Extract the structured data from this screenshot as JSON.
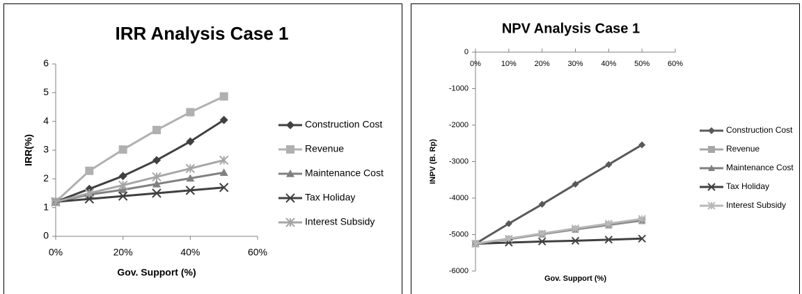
{
  "chart_data": [
    {
      "type": "line",
      "title": "IRR Analysis Case 1",
      "x_label": "Gov. Support (%)",
      "y_label": "IRR(%)",
      "x": [
        0,
        10,
        20,
        30,
        40,
        50
      ],
      "xlim": [
        0,
        60
      ],
      "xticks": [
        {
          "value": 0,
          "label": "0%"
        },
        {
          "value": 20,
          "label": "20%"
        },
        {
          "value": 40,
          "label": "40%"
        },
        {
          "value": 60,
          "label": "60%"
        }
      ],
      "ylim": [
        0,
        6
      ],
      "yticks": [
        0,
        1,
        2,
        3,
        4,
        5,
        6
      ],
      "grid": false,
      "legend": "right",
      "series": [
        {
          "name": "Construction Cost",
          "color": "#404040",
          "marker": "diamond",
          "values": [
            1.2,
            1.65,
            2.1,
            2.65,
            3.3,
            4.05
          ]
        },
        {
          "name": "Revenue",
          "color": "#b0b0b0",
          "marker": "square",
          "values": [
            1.2,
            2.28,
            3.02,
            3.7,
            4.32,
            4.87
          ]
        },
        {
          "name": "Maintenance Cost",
          "color": "#808080",
          "marker": "triangle",
          "values": [
            1.2,
            1.45,
            1.62,
            1.82,
            2.02,
            2.22
          ]
        },
        {
          "name": "Tax Holiday",
          "color": "#404040",
          "marker": "x",
          "values": [
            1.2,
            1.3,
            1.4,
            1.5,
            1.6,
            1.7
          ]
        },
        {
          "name": "Interest Subsidy",
          "color": "#a6a6a6",
          "marker": "star",
          "values": [
            1.2,
            1.5,
            1.78,
            2.07,
            2.36,
            2.65
          ]
        }
      ]
    },
    {
      "type": "line",
      "title": "NPV Analysis Case 1",
      "x_label": "Gov. Support (%)",
      "y_label": "INPV (B. Rp)",
      "x": [
        0,
        10,
        20,
        30,
        40,
        50
      ],
      "xlim": [
        0,
        60
      ],
      "xticks": [
        {
          "value": 0,
          "label": "0%"
        },
        {
          "value": 10,
          "label": "10%"
        },
        {
          "value": 20,
          "label": "20%"
        },
        {
          "value": 30,
          "label": "30%"
        },
        {
          "value": 40,
          "label": "40%"
        },
        {
          "value": 50,
          "label": "50%"
        },
        {
          "value": 60,
          "label": "60%"
        }
      ],
      "ylim": [
        -6000,
        0
      ],
      "yticks": [
        -6000,
        -5000,
        -4000,
        -3000,
        -2000,
        -1000,
        0
      ],
      "grid": false,
      "legend": "right",
      "series": [
        {
          "name": "Construction Cost",
          "color": "#595959",
          "marker": "diamond",
          "values": [
            -5250,
            -4700,
            -4170,
            -3620,
            -3080,
            -2540
          ]
        },
        {
          "name": "Revenue",
          "color": "#a6a6a6",
          "marker": "square",
          "values": [
            -5250,
            -5130,
            -4990,
            -4860,
            -4740,
            -4620
          ]
        },
        {
          "name": "Maintenance Cost",
          "color": "#7f7f7f",
          "marker": "triangle",
          "values": [
            -5250,
            -5120,
            -4980,
            -4850,
            -4720,
            -4600
          ]
        },
        {
          "name": "Tax Holiday",
          "color": "#404040",
          "marker": "x",
          "values": [
            -5250,
            -5220,
            -5190,
            -5170,
            -5140,
            -5110
          ]
        },
        {
          "name": "Interest Subsidy",
          "color": "#b8b8b8",
          "marker": "star",
          "values": [
            -5250,
            -5110,
            -4970,
            -4830,
            -4700,
            -4570
          ]
        }
      ]
    }
  ]
}
